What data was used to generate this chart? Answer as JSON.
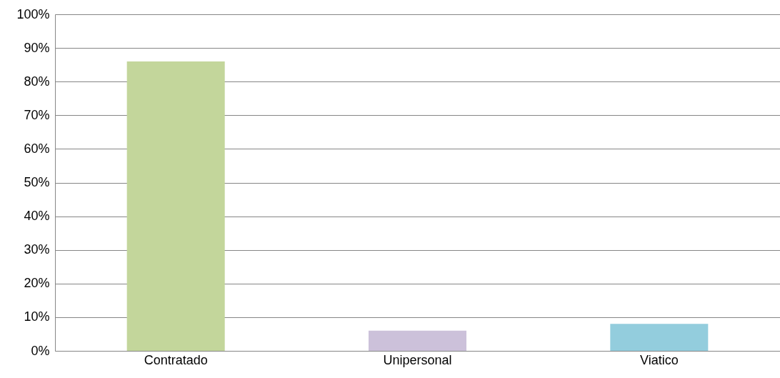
{
  "chart_data": {
    "type": "bar",
    "categories": [
      "Contratado",
      "Unipersonal",
      "Viatico"
    ],
    "values": [
      86,
      6,
      8
    ],
    "colors": [
      "#c3d69b",
      "#ccc1da",
      "#93cddd"
    ],
    "ylim": [
      0,
      100
    ],
    "yticks": [
      {
        "value": 0,
        "label": "0%"
      },
      {
        "value": 10,
        "label": "10%"
      },
      {
        "value": 20,
        "label": "20%"
      },
      {
        "value": 30,
        "label": "30%"
      },
      {
        "value": 40,
        "label": "40%"
      },
      {
        "value": 50,
        "label": "50%"
      },
      {
        "value": 60,
        "label": "60%"
      },
      {
        "value": 70,
        "label": "70%"
      },
      {
        "value": 80,
        "label": "80%"
      },
      {
        "value": 90,
        "label": "90%"
      },
      {
        "value": 100,
        "label": "100%"
      }
    ],
    "grid": "y",
    "legend": false
  }
}
